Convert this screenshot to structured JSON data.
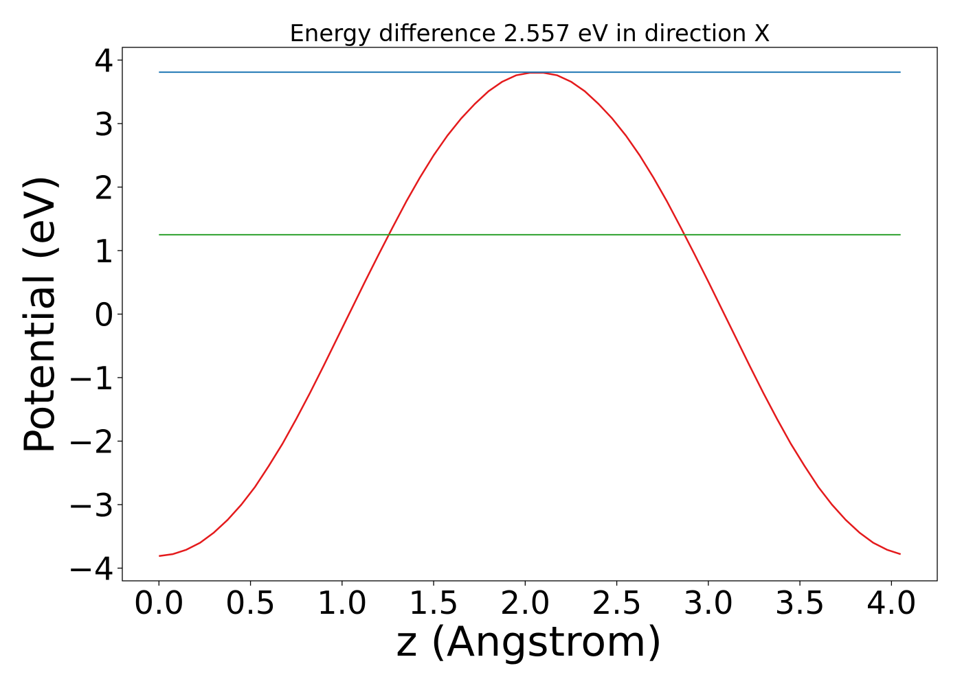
{
  "chart_data": {
    "type": "line",
    "title": "Energy difference 2.557 eV in direction X",
    "xlabel": "z (Angstrom)",
    "ylabel": "Potential (eV)",
    "xlim": [
      -0.2,
      4.25
    ],
    "ylim": [
      -4.2,
      4.2
    ],
    "xticks": [
      0.0,
      0.5,
      1.0,
      1.5,
      2.0,
      2.5,
      3.0,
      3.5,
      4.0
    ],
    "xtick_labels": [
      "0.0",
      "0.5",
      "1.0",
      "1.5",
      "2.0",
      "2.5",
      "3.0",
      "3.5",
      "4.0"
    ],
    "yticks": [
      -4,
      -3,
      -2,
      -1,
      0,
      1,
      2,
      3,
      4
    ],
    "ytick_labels": [
      "−4",
      "−3",
      "−2",
      "−1",
      "0",
      "1",
      "2",
      "3",
      "4"
    ],
    "grid": false,
    "series": [
      {
        "color": "#e41a1c",
        "x": [
          0.0,
          0.075,
          0.15,
          0.225,
          0.3,
          0.375,
          0.45,
          0.525,
          0.6,
          0.675,
          0.75,
          0.825,
          0.9,
          0.975,
          1.05,
          1.125,
          1.2,
          1.275,
          1.35,
          1.425,
          1.5,
          1.575,
          1.65,
          1.725,
          1.8,
          1.875,
          1.95,
          2.025,
          2.1,
          2.175,
          2.25,
          2.325,
          2.4,
          2.475,
          2.55,
          2.625,
          2.7,
          2.775,
          2.85,
          2.925,
          3.0,
          3.075,
          3.15,
          3.225,
          3.3,
          3.375,
          3.45,
          3.525,
          3.6,
          3.675,
          3.75,
          3.825,
          3.9,
          3.975,
          4.05
        ],
        "y": [
          -3.81,
          -3.78,
          -3.71,
          -3.6,
          -3.44,
          -3.24,
          -3.0,
          -2.72,
          -2.39,
          -2.04,
          -1.65,
          -1.24,
          -0.81,
          -0.37,
          0.07,
          0.51,
          0.94,
          1.36,
          1.77,
          2.15,
          2.5,
          2.81,
          3.08,
          3.31,
          3.51,
          3.66,
          3.76,
          3.8,
          3.8,
          3.76,
          3.66,
          3.51,
          3.31,
          3.08,
          2.81,
          2.5,
          2.15,
          1.77,
          1.36,
          0.94,
          0.51,
          0.07,
          -0.37,
          -0.81,
          -1.24,
          -1.65,
          -2.04,
          -2.39,
          -2.72,
          -3.0,
          -3.24,
          -3.44,
          -3.6,
          -3.71,
          -3.78
        ]
      },
      {
        "color": "#1f77b4",
        "x": [
          0.0,
          4.05
        ],
        "y": [
          3.81,
          3.81
        ]
      },
      {
        "color": "#2ca02c",
        "x": [
          0.0,
          4.05
        ],
        "y": [
          1.25,
          1.25
        ]
      }
    ]
  }
}
